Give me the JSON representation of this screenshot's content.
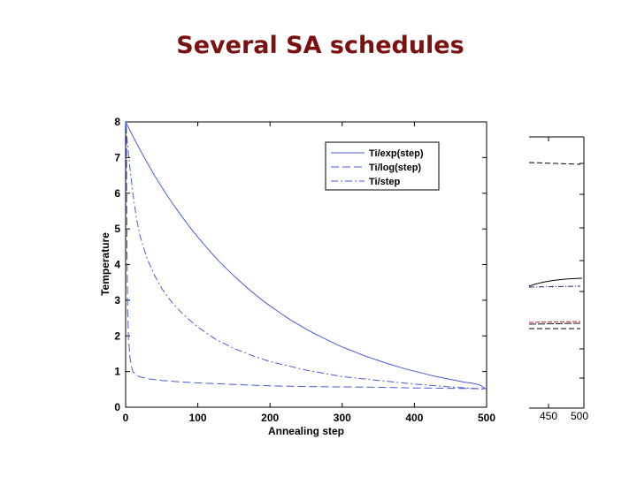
{
  "slide": {
    "title": "Several SA schedules"
  },
  "chart_data": {
    "type": "line",
    "title": "",
    "xlabel": "Annealing step",
    "ylabel": "Temperature",
    "xlim": [
      0,
      500
    ],
    "ylim": [
      0,
      8
    ],
    "xticks": [
      0,
      100,
      200,
      300,
      400,
      500
    ],
    "yticks": [
      0,
      1,
      2,
      3,
      4,
      5,
      6,
      7,
      8
    ],
    "grid": false,
    "legend_position": "top-right",
    "series": [
      {
        "name": "Ti/exp(step)",
        "style": "solid",
        "color": "#4a5bd4",
        "x": [
          0,
          10,
          20,
          30,
          40,
          50,
          60,
          70,
          80,
          90,
          100,
          110,
          120,
          130,
          140,
          150,
          160,
          170,
          180,
          190,
          200,
          210,
          220,
          230,
          240,
          250,
          260,
          270,
          280,
          290,
          300,
          310,
          320,
          330,
          340,
          350,
          360,
          370,
          380,
          390,
          400,
          410,
          420,
          430,
          440,
          450,
          460,
          470,
          480,
          490,
          500
        ],
        "y": [
          8.0,
          7.6,
          7.22,
          6.85,
          6.5,
          6.17,
          5.86,
          5.57,
          5.29,
          5.02,
          4.77,
          4.53,
          4.3,
          4.08,
          3.88,
          3.68,
          3.5,
          3.32,
          3.15,
          2.99,
          2.84,
          2.7,
          2.56,
          2.43,
          2.31,
          2.19,
          2.08,
          1.98,
          1.88,
          1.78,
          1.69,
          1.61,
          1.53,
          1.45,
          1.38,
          1.31,
          1.24,
          1.18,
          1.12,
          1.06,
          1.01,
          0.96,
          0.91,
          0.86,
          0.82,
          0.78,
          0.74,
          0.7,
          0.67,
          0.63,
          0.5
        ]
      },
      {
        "name": "Ti/log(step)",
        "style": "dashed",
        "color": "#4a5bd4",
        "x": [
          1,
          1.5,
          2,
          3,
          4,
          6,
          8,
          10,
          15,
          20,
          30,
          50,
          75,
          100,
          150,
          200,
          250,
          300,
          350,
          400,
          450,
          500
        ],
        "y": [
          7.9,
          6.0,
          4.2,
          2.6,
          1.9,
          1.4,
          1.15,
          1.0,
          0.9,
          0.85,
          0.8,
          0.75,
          0.71,
          0.68,
          0.64,
          0.6,
          0.58,
          0.57,
          0.56,
          0.54,
          0.53,
          0.52
        ]
      },
      {
        "name": "Ti/step",
        "style": "dashdot",
        "color": "#4a5bd4",
        "x": [
          0,
          3,
          6,
          10,
          15,
          20,
          30,
          40,
          50,
          60,
          70,
          80,
          90,
          100,
          125,
          150,
          175,
          200,
          250,
          300,
          350,
          400,
          450,
          500
        ],
        "y": [
          8.0,
          7.3,
          6.7,
          6.0,
          5.3,
          4.8,
          4.15,
          3.7,
          3.33,
          3.05,
          2.8,
          2.6,
          2.42,
          2.25,
          1.9,
          1.65,
          1.45,
          1.28,
          1.04,
          0.86,
          0.75,
          0.65,
          0.57,
          0.5
        ]
      }
    ]
  },
  "background_plot": {
    "xticks": [
      "450",
      "500"
    ]
  }
}
